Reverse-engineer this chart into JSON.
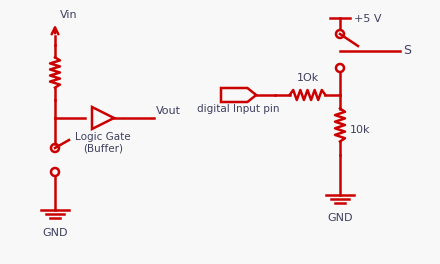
{
  "bg_color": "#f8f8f8",
  "line_color": "#cc0000",
  "text_color": "#404060",
  "line_width": 1.8,
  "circuit1": {
    "vin_label": "Vin",
    "gnd_label": "GND",
    "vout_label": "Vout",
    "buffer_label": "Logic Gate\n(Buffer)"
  },
  "circuit2": {
    "vcc_label": "+5 V",
    "gnd_label": "GND",
    "r1_label": "1Ok",
    "r2_label": "10k",
    "input_label": "digital Input pin",
    "s_label": "S"
  }
}
